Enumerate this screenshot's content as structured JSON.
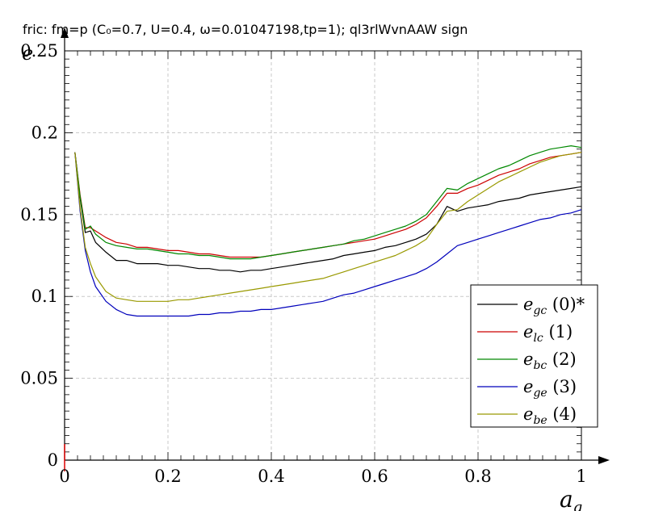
{
  "chart_data": {
    "type": "line",
    "title": "fric: fm=p (C₀=0.7, U=0.4, ω=0.01047198,tp=1); ql3rlWvnAAW sign",
    "xlabel": "a",
    "xlabel_sub": "g",
    "ylabel": "e",
    "xlim": [
      0,
      1
    ],
    "ylim": [
      0,
      0.25
    ],
    "x_ticks": [
      "0",
      "0.2",
      "0.4",
      "0.6",
      "0.8",
      "1"
    ],
    "y_ticks": [
      "0",
      "0.05",
      "0.1",
      "0.15",
      "0.2",
      "0.25"
    ],
    "grid": true,
    "legend_position": "lower-right",
    "x": [
      0.02,
      0.03,
      0.04,
      0.05,
      0.06,
      0.08,
      0.1,
      0.12,
      0.14,
      0.16,
      0.18,
      0.2,
      0.22,
      0.24,
      0.26,
      0.28,
      0.3,
      0.32,
      0.34,
      0.36,
      0.38,
      0.4,
      0.42,
      0.44,
      0.46,
      0.48,
      0.5,
      0.52,
      0.54,
      0.56,
      0.58,
      0.6,
      0.62,
      0.64,
      0.66,
      0.68,
      0.7,
      0.72,
      0.74,
      0.76,
      0.78,
      0.8,
      0.82,
      0.84,
      0.86,
      0.88,
      0.9,
      0.92,
      0.94,
      0.96,
      0.98,
      1.0
    ],
    "series": [
      {
        "name": "e",
        "sub": "gc",
        "suffix": " (0)*",
        "color": "#000000",
        "values": [
          0.188,
          0.16,
          0.139,
          0.14,
          0.133,
          0.127,
          0.122,
          0.122,
          0.12,
          0.12,
          0.12,
          0.119,
          0.119,
          0.118,
          0.117,
          0.117,
          0.116,
          0.116,
          0.115,
          0.116,
          0.116,
          0.117,
          0.118,
          0.119,
          0.12,
          0.121,
          0.122,
          0.123,
          0.125,
          0.126,
          0.127,
          0.128,
          0.13,
          0.131,
          0.133,
          0.135,
          0.138,
          0.144,
          0.155,
          0.152,
          0.154,
          0.155,
          0.156,
          0.158,
          0.159,
          0.16,
          0.162,
          0.163,
          0.164,
          0.165,
          0.166,
          0.167
        ]
      },
      {
        "name": "e",
        "sub": "lc",
        "suffix": " (1)",
        "color": "#cc0000",
        "values": [
          0.188,
          0.162,
          0.142,
          0.142,
          0.14,
          0.136,
          0.133,
          0.132,
          0.13,
          0.13,
          0.129,
          0.128,
          0.128,
          0.127,
          0.126,
          0.126,
          0.125,
          0.124,
          0.124,
          0.124,
          0.124,
          0.125,
          0.126,
          0.127,
          0.128,
          0.129,
          0.13,
          0.131,
          0.132,
          0.133,
          0.134,
          0.135,
          0.137,
          0.139,
          0.141,
          0.144,
          0.148,
          0.155,
          0.163,
          0.163,
          0.166,
          0.168,
          0.171,
          0.174,
          0.176,
          0.178,
          0.181,
          0.183,
          0.185,
          0.186,
          0.187,
          0.188
        ]
      },
      {
        "name": "e",
        "sub": "bc",
        "suffix": " (2)",
        "color": "#008800",
        "values": [
          0.188,
          0.161,
          0.141,
          0.143,
          0.138,
          0.133,
          0.131,
          0.13,
          0.129,
          0.129,
          0.128,
          0.127,
          0.126,
          0.126,
          0.125,
          0.125,
          0.124,
          0.123,
          0.123,
          0.123,
          0.124,
          0.125,
          0.126,
          0.127,
          0.128,
          0.129,
          0.13,
          0.131,
          0.132,
          0.134,
          0.135,
          0.137,
          0.139,
          0.141,
          0.143,
          0.146,
          0.15,
          0.158,
          0.166,
          0.165,
          0.169,
          0.172,
          0.175,
          0.178,
          0.18,
          0.183,
          0.186,
          0.188,
          0.19,
          0.191,
          0.192,
          0.191
        ]
      },
      {
        "name": "e",
        "sub": "ge",
        "suffix": " (3)",
        "color": "#0000bb",
        "values": [
          0.188,
          0.152,
          0.128,
          0.115,
          0.106,
          0.097,
          0.092,
          0.089,
          0.088,
          0.088,
          0.088,
          0.088,
          0.088,
          0.088,
          0.089,
          0.089,
          0.09,
          0.09,
          0.091,
          0.091,
          0.092,
          0.092,
          0.093,
          0.094,
          0.095,
          0.096,
          0.097,
          0.099,
          0.101,
          0.102,
          0.104,
          0.106,
          0.108,
          0.11,
          0.112,
          0.114,
          0.117,
          0.121,
          0.126,
          0.131,
          0.133,
          0.135,
          0.137,
          0.139,
          0.141,
          0.143,
          0.145,
          0.147,
          0.148,
          0.15,
          0.151,
          0.153
        ]
      },
      {
        "name": "e",
        "sub": "be",
        "suffix": " (4)",
        "color": "#999900",
        "values": [
          0.188,
          0.154,
          0.13,
          0.12,
          0.112,
          0.103,
          0.099,
          0.098,
          0.097,
          0.097,
          0.097,
          0.097,
          0.098,
          0.098,
          0.099,
          0.1,
          0.101,
          0.102,
          0.103,
          0.104,
          0.105,
          0.106,
          0.107,
          0.108,
          0.109,
          0.11,
          0.111,
          0.113,
          0.115,
          0.117,
          0.119,
          0.121,
          0.123,
          0.125,
          0.128,
          0.131,
          0.135,
          0.144,
          0.152,
          0.153,
          0.158,
          0.162,
          0.166,
          0.17,
          0.173,
          0.176,
          0.179,
          0.182,
          0.184,
          0.186,
          0.187,
          0.188
        ]
      }
    ]
  }
}
